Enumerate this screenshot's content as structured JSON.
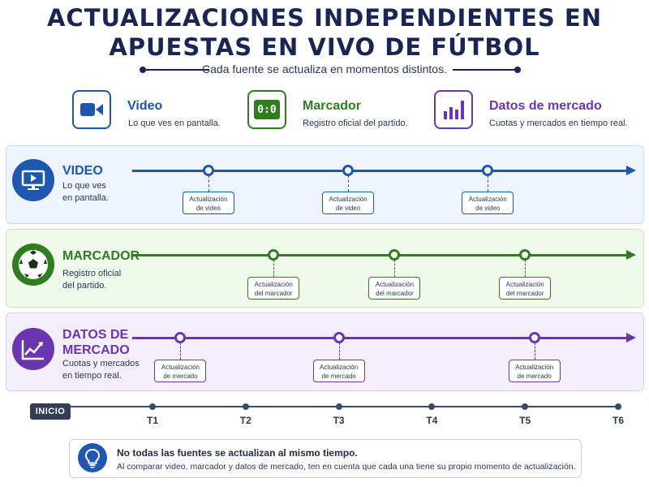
{
  "header": {
    "title_line1": "ACTUALIZACIONES INDEPENDIENTES EN",
    "title_line2": "APUESTAS EN VIVO DE FÚTBOL",
    "subtitle": "Cada fuente se actualiza en momentos distintos."
  },
  "legend": [
    {
      "title": "Video",
      "desc": "Lo que ves en pantalla.",
      "icon": "video-camera-icon",
      "color": "#1e56b0"
    },
    {
      "title": "Marcador",
      "desc": "Registro oficial del partido.",
      "icon": "scoreboard-icon",
      "score": "0:0",
      "color": "#2e7d1e"
    },
    {
      "title": "Datos de mercado",
      "desc": "Cuotas y mercados en tiempo real.",
      "icon": "bar-chart-icon",
      "color": "#6b35b0"
    }
  ],
  "rows": [
    {
      "title_line1": "VIDEO",
      "title_line2": "",
      "desc_line1": "Lo que ves",
      "desc_line2": "en pantalla.",
      "icon": "monitor-icon",
      "color": "#1e56b0",
      "updates": [
        {
          "line1": "Actualización",
          "line2": "de video",
          "time": 1.6
        },
        {
          "line1": "Actualización",
          "line2": "de video",
          "time": 3.1
        },
        {
          "line1": "Actualización",
          "line2": "de video",
          "time": 4.6
        }
      ]
    },
    {
      "title_line1": "MARCADOR",
      "title_line2": "",
      "desc_line1": "Registro oficial",
      "desc_line2": "del partido.",
      "icon": "soccer-ball-icon",
      "color": "#2e7d1e",
      "updates": [
        {
          "line1": "Actualización",
          "line2": "del marcador",
          "time": 2.3
        },
        {
          "line1": "Actualización",
          "line2": "del marcador",
          "time": 3.6
        },
        {
          "line1": "Actualización",
          "line2": "del marcador",
          "time": 5.0
        }
      ]
    },
    {
      "title_line1": "DATOS DE",
      "title_line2": "MERCADO",
      "desc_line1": "Cuotas y mercados",
      "desc_line2": "en tiempo real.",
      "icon": "trend-chart-icon",
      "color": "#6b35b0",
      "updates": [
        {
          "line1": "Actualización",
          "line2": "de mercado",
          "time": 1.3
        },
        {
          "line1": "Actualización",
          "line2": "de mercado",
          "time": 3.0
        },
        {
          "line1": "Actualización",
          "line2": "de mercado",
          "time": 5.1
        }
      ]
    }
  ],
  "axis": {
    "start_label": "INICIO",
    "ticks": [
      "T1",
      "T2",
      "T3",
      "T4",
      "T5",
      "T6"
    ]
  },
  "note": {
    "title": "No todas las fuentes se actualizan al mismo tiempo.",
    "body": "Al comparar video, marcador y datos de mercado, ten en cuenta que cada una tiene su propio momento de actualización.",
    "icon": "lightbulb-icon"
  }
}
